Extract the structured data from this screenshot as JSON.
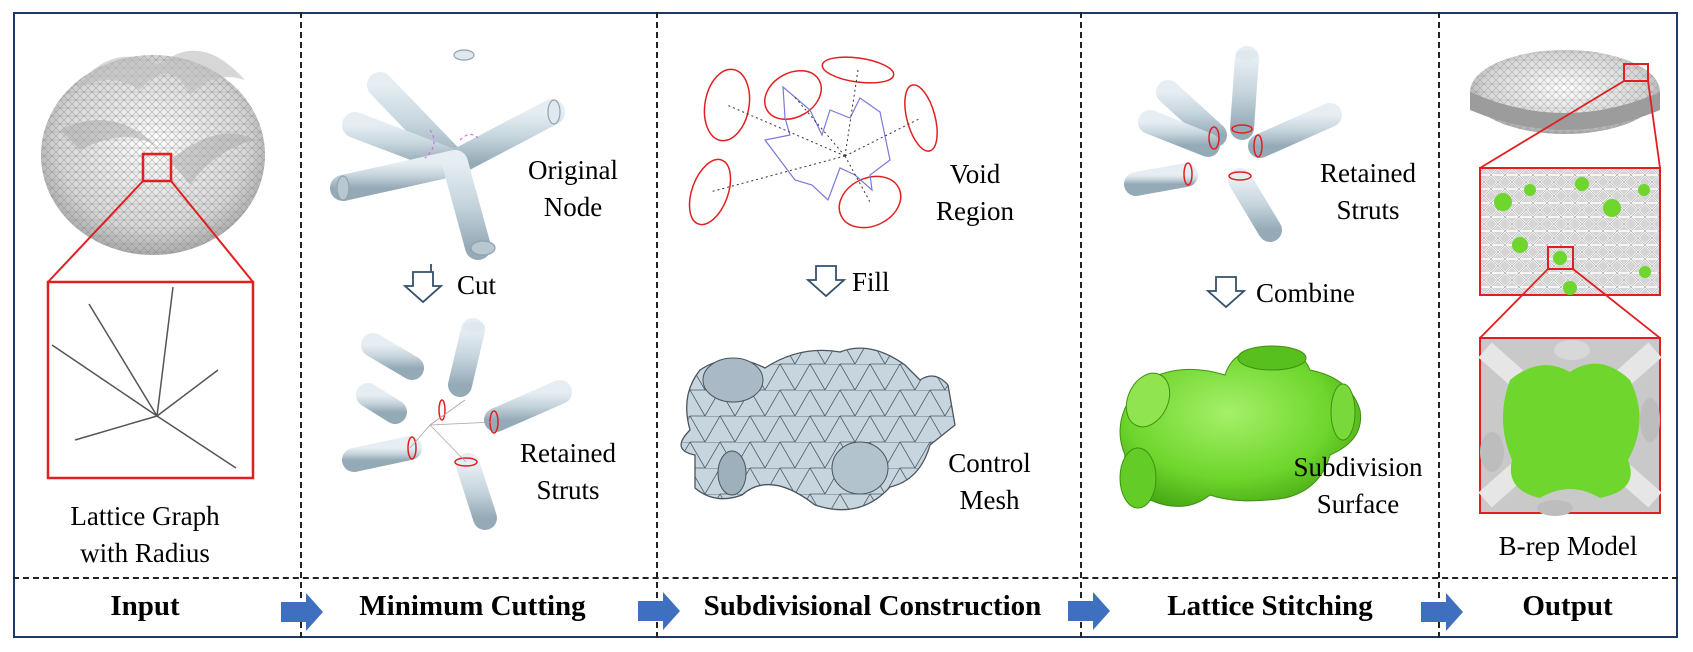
{
  "stages": {
    "input": "Input",
    "cutting": "Minimum Cutting",
    "construction": "Subdivisional Construction",
    "stitching": "Lattice Stitching",
    "output": "Output"
  },
  "labels": {
    "lattice_graph_line1": "Lattice Graph",
    "lattice_graph_line2": "with Radius",
    "original_node_line1": "Original",
    "original_node_line2": "Node",
    "cut": "Cut",
    "retained_struts_line1": "Retained",
    "retained_struts_line2": "Struts",
    "void_region_line1": "Void",
    "void_region_line2": "Region",
    "fill": "Fill",
    "control_mesh_line1": "Control",
    "control_mesh_line2": "Mesh",
    "retained_struts2_line1": "Retained",
    "retained_struts2_line2": "Struts",
    "combine": "Combine",
    "subdivision_surface_line1": "Subdivision",
    "subdivision_surface_line2": "Surface",
    "brep_model": "B-rep Model"
  },
  "colors": {
    "frame": "#1f3864",
    "strut_fill": "#c8d6de",
    "strut_stroke": "#7f97a6",
    "highlight_red": "#e02020",
    "mesh_green": "#79e23a",
    "arrow_blue": "#3f6fbf",
    "void_blue": "#7a7ad8"
  }
}
